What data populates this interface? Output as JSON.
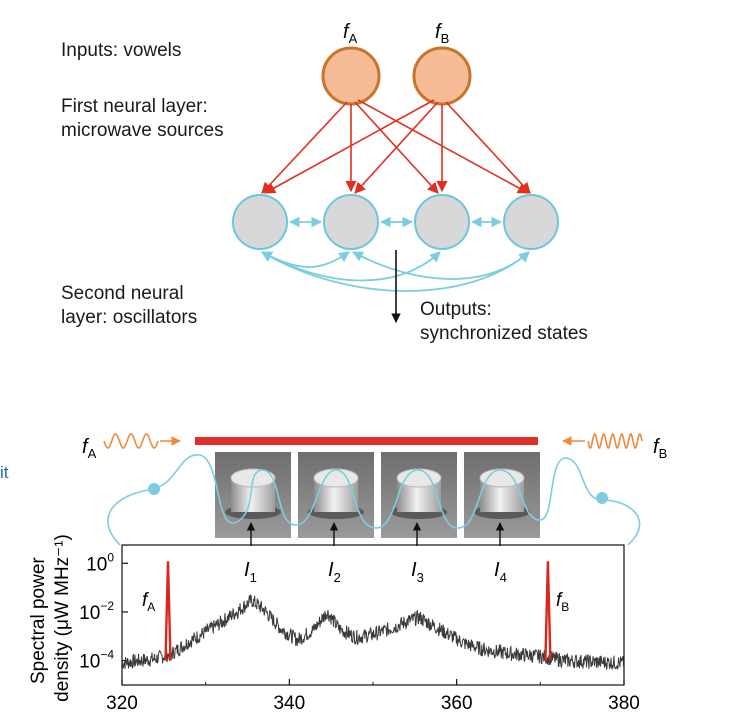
{
  "network": {
    "inputs_label": "Inputs: vowels",
    "layer1_label_line1": "First neural layer:",
    "layer1_label_line2": "microwave sources",
    "layer2_label_line1": "Second neural",
    "layer2_label_line2": "layer: oscillators",
    "outputs_label_line1": "Outputs:",
    "outputs_label_line2": "synchronized states",
    "input_a": {
      "symbol": "f",
      "sub": "A"
    },
    "input_b": {
      "symbol": "f",
      "sub": "B"
    }
  },
  "device": {
    "source_a": {
      "symbol": "f",
      "sub": "A"
    },
    "source_b": {
      "symbol": "f",
      "sub": "B"
    },
    "cut_text": "it",
    "currents": [
      {
        "symbol": "I",
        "sub": "1"
      },
      {
        "symbol": "I",
        "sub": "2"
      },
      {
        "symbol": "I",
        "sub": "3"
      },
      {
        "symbol": "I",
        "sub": "4"
      }
    ]
  },
  "colors": {
    "input_fill": "#f6bc96",
    "input_stroke": "#c8742a",
    "arrow_red": "#e03020",
    "oscillator_fill": "#d8d8d8",
    "oscillator_stroke": "#6ac8dc",
    "coupling": "#7dcde0",
    "wave_a": "#f08a3a",
    "wave_b": "#f08a3a",
    "bar": "#e0302a",
    "spectrum": "#3a3a3a",
    "peak": "#d8281e"
  },
  "chart_data": {
    "type": "line",
    "ylabel_line1": "Spectral power",
    "ylabel_line2": "density (μW MHz⁻¹)",
    "xlim": [
      320,
      380
    ],
    "x_ticks": [
      320,
      340,
      360,
      380
    ],
    "y_scale": "log",
    "y_ticks": [
      {
        "base": "10",
        "exp": "0"
      },
      {
        "base": "10",
        "exp": "−2"
      },
      {
        "base": "10",
        "exp": "−4"
      }
    ],
    "series": [
      {
        "points": [
          [
            320,
            8e-05
          ],
          [
            324,
            0.00012
          ],
          [
            326,
            0.0002
          ],
          [
            328,
            0.0006
          ],
          [
            330,
            0.0015
          ],
          [
            332,
            0.004
          ],
          [
            334,
            0.012
          ],
          [
            335.5,
            0.03
          ],
          [
            337,
            0.012
          ],
          [
            339,
            0.002
          ],
          [
            341,
            0.0007
          ],
          [
            343,
            0.002
          ],
          [
            344.5,
            0.01
          ],
          [
            346,
            0.002
          ],
          [
            348,
            0.0009
          ],
          [
            350,
            0.0012
          ],
          [
            352,
            0.002
          ],
          [
            354,
            0.004
          ],
          [
            355.5,
            0.006
          ],
          [
            357,
            0.003
          ],
          [
            359,
            0.0012
          ],
          [
            361,
            0.0005
          ],
          [
            363,
            0.0003
          ],
          [
            366,
            0.0002
          ],
          [
            370,
            0.00015
          ],
          [
            373,
            0.0001
          ],
          [
            376,
            9e-05
          ],
          [
            380,
            8e-05
          ]
        ]
      },
      {
        "name": "fA",
        "points": [
          [
            325.2,
            0.0001
          ],
          [
            325.5,
            1.2
          ],
          [
            325.8,
            0.0001
          ]
        ]
      },
      {
        "name": "fB",
        "points": [
          [
            370.6,
            0.0001
          ],
          [
            370.9,
            1.2
          ],
          [
            371.2,
            0.0001
          ]
        ]
      }
    ]
  }
}
